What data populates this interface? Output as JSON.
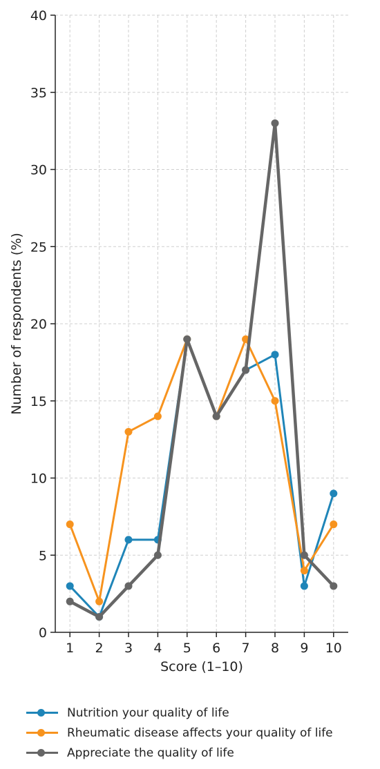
{
  "chart_data": {
    "type": "line",
    "x": [
      1,
      2,
      3,
      4,
      5,
      6,
      7,
      8,
      9,
      10
    ],
    "xlabel": "Score (1–10)",
    "ylabel": "Number of respondents (%)",
    "xlim": [
      0.5,
      10.5
    ],
    "ylim": [
      0,
      40
    ],
    "yticks": [
      0,
      5,
      10,
      15,
      20,
      25,
      30,
      35,
      40
    ],
    "xticks": [
      1,
      2,
      3,
      4,
      5,
      6,
      7,
      8,
      9,
      10
    ],
    "grid": true,
    "legend_position": "bottom",
    "series": [
      {
        "name": "Nutrition your quality of life",
        "color": "#1f85b8",
        "values": [
          3,
          1,
          6,
          6,
          19,
          14,
          17,
          18,
          3,
          9
        ]
      },
      {
        "name": "Rheumatic disease affects your quality of life",
        "color": "#f7931e",
        "values": [
          7,
          2,
          13,
          14,
          19,
          14,
          19,
          15,
          4,
          7
        ]
      },
      {
        "name": "Appreciate the quality of life",
        "color": "#666666",
        "values": [
          2,
          1,
          3,
          5,
          19,
          14,
          17,
          33,
          5,
          3
        ]
      }
    ]
  }
}
